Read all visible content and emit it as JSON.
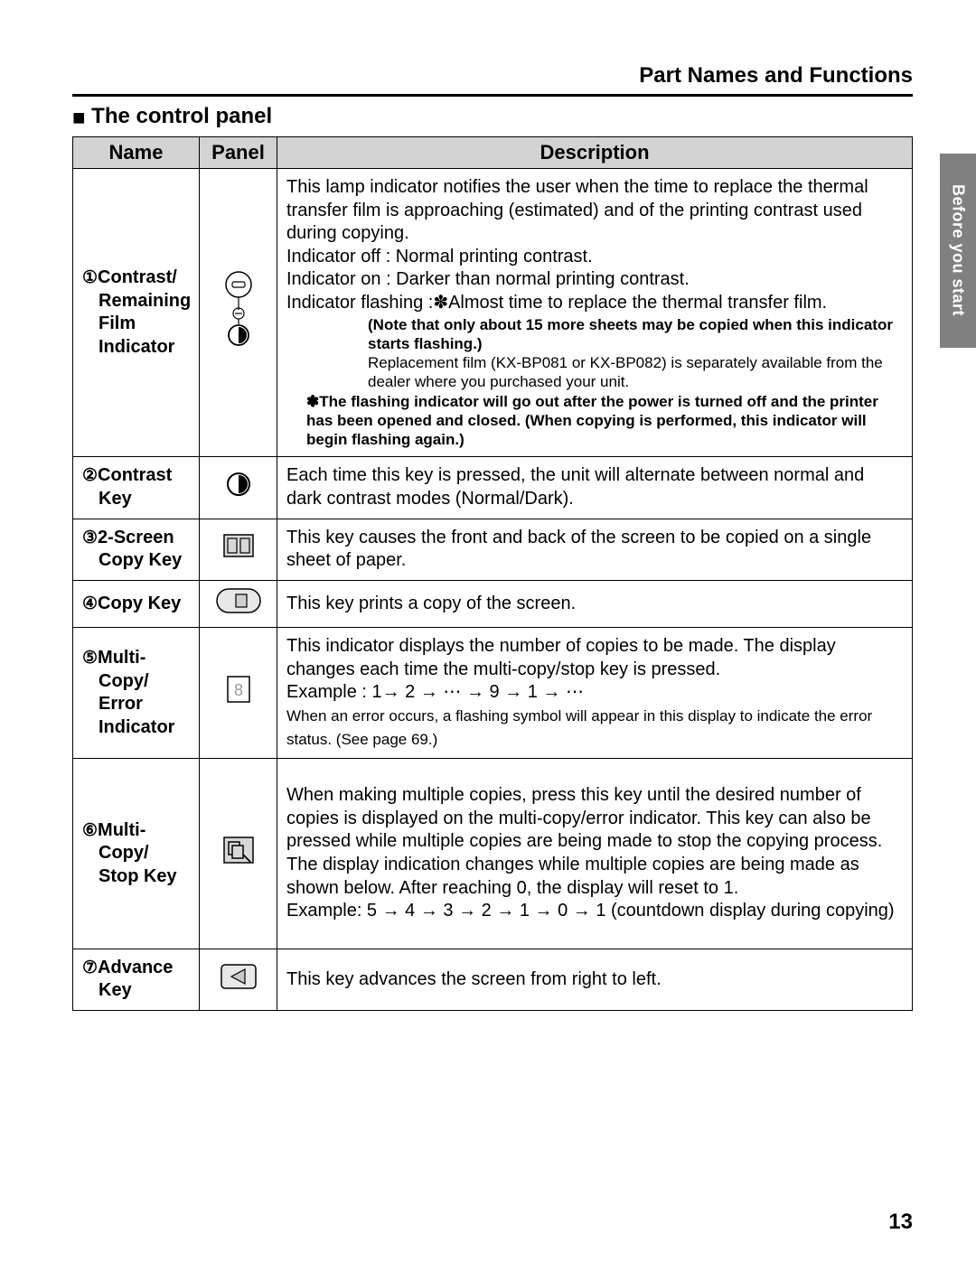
{
  "page_title": "Part Names and Functions",
  "section_heading": "The control panel",
  "side_tab": "Before you start",
  "page_number": "13",
  "headers": {
    "name": "Name",
    "panel": "Panel",
    "description": "Description"
  },
  "col_widths": {
    "name": "140px",
    "panel": "86px",
    "desc": "auto"
  },
  "colors": {
    "header_bg": "#d3d3d3",
    "tab_bg": "#808080",
    "tab_text": "#ffffff",
    "text": "#000000",
    "rule": "#000000"
  },
  "rows": [
    {
      "num": "①",
      "name_lines": [
        "Contrast/",
        "Remaining",
        "Film",
        "Indicator"
      ],
      "desc_main": [
        "This lamp indicator notifies the user when the time to replace the thermal transfer film is approaching (estimated) and of the printing contrast used during copying.",
        "Indicator off : Normal printing contrast.",
        "Indicator on : Darker than normal printing contrast.",
        "Indicator flashing :✽Almost time to replace the thermal transfer film."
      ],
      "desc_note_bold1": "(Note that only about 15 more sheets may be copied when this indicator starts flashing.)",
      "desc_note_plain": "Replacement film (KX-BP081 or KX-BP082) is separately available from the dealer where you purchased your unit.",
      "desc_star_bold": "✽The flashing indicator will go out after the power is turned off and the printer has been opened and closed. (When copying is performed, this indicator will begin flashing again.)"
    },
    {
      "num": "②",
      "name_lines": [
        "Contrast",
        "Key"
      ],
      "desc_main": [
        "Each time this key is pressed, the unit will alternate between normal and dark contrast modes (Normal/Dark)."
      ]
    },
    {
      "num": "③",
      "name_lines": [
        "2-Screen",
        "Copy Key"
      ],
      "desc_main": [
        "This key causes the front and back of the screen to be copied on a single sheet of paper."
      ]
    },
    {
      "num": "④",
      "name_lines": [
        "Copy Key"
      ],
      "desc_main": [
        "This key prints a copy of the screen."
      ]
    },
    {
      "num": "⑤",
      "name_lines": [
        "Multi-",
        "Copy/",
        "Error",
        "Indicator"
      ],
      "desc_main": [
        "This indicator displays the number of copies to be made. The display changes each time the multi-copy/stop key is pressed.",
        "Example : 1→ 2 → ⋯ → 9 → 1 → ⋯"
      ],
      "desc_note_plain2": "When an error occurs, a flashing symbol will appear in this display to indicate the error status. (See page 69.)"
    },
    {
      "num": "⑥",
      "name_lines": [
        "Multi-",
        "Copy/",
        "Stop Key"
      ],
      "desc_main": [
        "When making multiple copies, press this key until the desired number of copies is displayed on the multi-copy/error indicator. This key can also be pressed while multiple copies are being made to stop the copying process. The display indication changes while multiple copies are being made as shown below. After reaching 0, the display will reset to 1.",
        "Example: 5 → 4 → 3 → 2 → 1 → 0 → 1 (countdown display during copying)"
      ]
    },
    {
      "num": "⑦",
      "name_lines": [
        "Advance",
        "Key"
      ],
      "desc_main": [
        "This key advances the screen from right to left."
      ]
    }
  ]
}
